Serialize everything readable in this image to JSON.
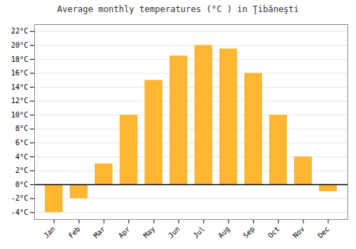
{
  "chart_data": {
    "type": "bar",
    "title": "Average monthly temperatures (°C ) in Ţibăneşti",
    "categories": [
      "Jan",
      "Feb",
      "Mar",
      "Apr",
      "May",
      "Jun",
      "Jul",
      "Aug",
      "Sep",
      "Oct",
      "Nov",
      "Dec"
    ],
    "values": [
      -4,
      -2,
      3,
      10,
      15,
      18.5,
      20,
      19.5,
      16,
      10,
      4,
      -1
    ],
    "color": "#FFB733",
    "ylim": [
      -5,
      23
    ],
    "yticks": [
      {
        "value": -4,
        "label": "-4°C"
      },
      {
        "value": -2,
        "label": "-2°C"
      },
      {
        "value": 0,
        "label": "0°C"
      },
      {
        "value": 2,
        "label": "2°C"
      },
      {
        "value": 4,
        "label": "4°C"
      },
      {
        "value": 6,
        "label": "6°C"
      },
      {
        "value": 8,
        "label": "8°C"
      },
      {
        "value": 10,
        "label": "10°C"
      },
      {
        "value": 12,
        "label": "12°C"
      },
      {
        "value": 14,
        "label": "14°C"
      },
      {
        "value": 16,
        "label": "16°C"
      },
      {
        "value": 18,
        "label": "18°C"
      },
      {
        "value": 20,
        "label": "20°C"
      },
      {
        "value": 22,
        "label": "22°C"
      }
    ],
    "grid": true
  }
}
